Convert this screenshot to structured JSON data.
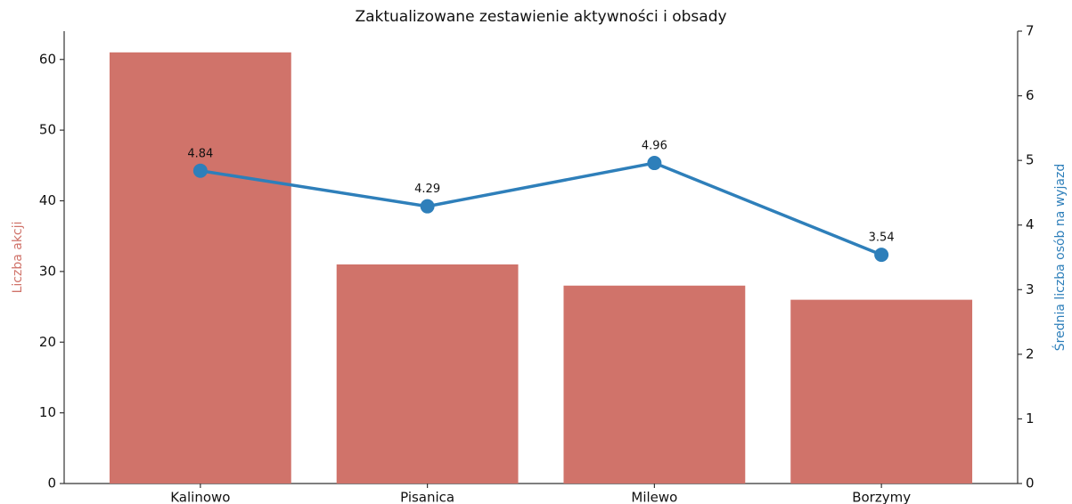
{
  "chart_data": {
    "type": "bar",
    "title": "Zaktualizowane zestawienie aktywności i obsady",
    "categories": [
      "Kalinowo",
      "Pisanica",
      "Milewo",
      "Borzymy"
    ],
    "ylabel": "Liczba akcji",
    "y2label": "Średnia liczba osób na wyjazd",
    "series": [
      {
        "type": "bar",
        "color": "#d0736a",
        "values": [
          61,
          31,
          28,
          26
        ]
      },
      {
        "type": "line",
        "axis": "y2",
        "color": "#2e7fba",
        "values": [
          4.84,
          4.29,
          4.96,
          3.54
        ]
      }
    ],
    "ylim": [
      0,
      64
    ],
    "yticks": [
      0,
      10,
      20,
      30,
      40,
      50,
      60
    ],
    "y2lim": [
      0,
      7
    ],
    "y2ticks": [
      0,
      1,
      2,
      3,
      4,
      5,
      6,
      7
    ],
    "ylabel_color": "#d0736a",
    "y2label_color": "#2e7fba"
  }
}
